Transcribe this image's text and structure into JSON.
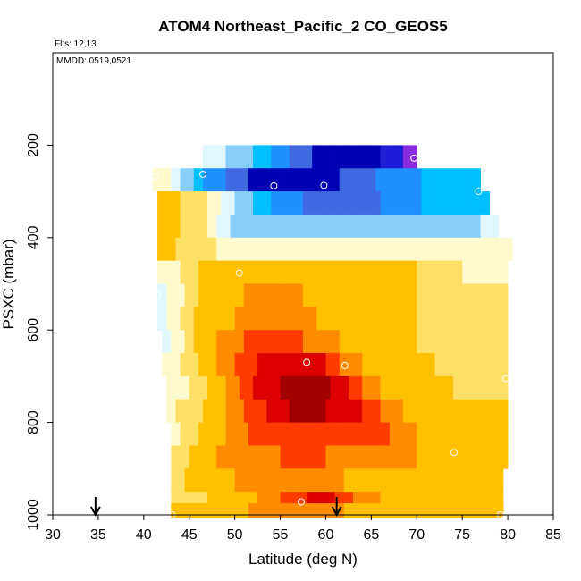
{
  "chart_data": {
    "type": "heatmap",
    "title": "ATOM4 Northeast_Pacific_2 CO_GEOS5",
    "flights_label": "Flts: 12,13",
    "dates_label": "MMDD: 0519,0521",
    "xlabel": "Latitude (deg N)",
    "ylabel": "PSXC (mbar)",
    "xlim": [
      30,
      85
    ],
    "ylim": [
      1000,
      0
    ],
    "x_ticks": [
      "30",
      "35",
      "40",
      "45",
      "50",
      "55",
      "60",
      "65",
      "70",
      "75",
      "80",
      "85"
    ],
    "y_ticks": [
      "200",
      "400",
      "600",
      "800",
      "1000"
    ],
    "y_tick_values": [
      200,
      400,
      600,
      800,
      1000
    ],
    "lat_step": 0.5,
    "palette": [
      "#8a2be2",
      "#1e1ed8",
      "#0000b4",
      "#4169e1",
      "#1e90ff",
      "#00bfff",
      "#87cefa",
      "#e0f7ff",
      "#fffacd",
      "#ffe066",
      "#ffc000",
      "#ff8c00",
      "#ff3b00",
      "#dc0000",
      "#a00000"
    ],
    "rows": [
      {
        "p": 225,
        "lat0": 46.5,
        "lat1": 70.0,
        "k": [
          [
            46.5,
            7.5
          ],
          [
            49,
            6.5
          ],
          [
            52,
            5.5
          ],
          [
            56,
            3.5
          ],
          [
            60,
            2
          ],
          [
            66,
            1.5
          ],
          [
            68.5,
            0.5
          ],
          [
            70,
            0
          ]
        ]
      },
      {
        "p": 275,
        "lat0": 41.0,
        "lat1": 77.0,
        "k": [
          [
            41,
            8
          ],
          [
            43,
            7.5
          ],
          [
            46.5,
            4.5
          ],
          [
            50,
            3
          ],
          [
            53,
            2
          ],
          [
            60,
            2
          ],
          [
            63,
            3
          ],
          [
            68,
            4
          ],
          [
            73,
            5
          ],
          [
            77,
            5.5
          ]
        ]
      },
      {
        "p": 325,
        "lat0": 41.5,
        "lat1": 78.0,
        "k": [
          [
            41.5,
            10
          ],
          [
            44,
            9.5
          ],
          [
            47,
            8.5
          ],
          [
            51,
            6
          ],
          [
            55,
            4
          ],
          [
            60,
            3
          ],
          [
            66,
            3.5
          ],
          [
            73,
            5
          ],
          [
            78,
            5.5
          ]
        ]
      },
      {
        "p": 375,
        "lat0": 41.5,
        "lat1": 79.0,
        "k": [
          [
            41.5,
            10
          ],
          [
            44,
            9.5
          ],
          [
            47,
            8.5
          ],
          [
            50,
            6
          ],
          [
            53,
            5.5
          ],
          [
            65,
            5.5
          ],
          [
            72,
            6
          ],
          [
            77,
            6.5
          ],
          [
            79,
            7
          ]
        ]
      },
      {
        "p": 425,
        "lat0": 41.5,
        "lat1": 80.5,
        "k": [
          [
            41.5,
            10
          ],
          [
            45,
            9
          ],
          [
            48,
            8.5
          ],
          [
            51,
            7.5
          ],
          [
            60,
            7.5
          ],
          [
            80.5,
            7.5
          ]
        ]
      },
      {
        "p": 475,
        "lat0": 41.5,
        "lat1": 80.0,
        "k": [
          [
            41.5,
            7.5
          ],
          [
            44,
            8.5
          ],
          [
            47,
            10
          ],
          [
            51,
            10.5
          ],
          [
            60,
            10
          ],
          [
            70,
            9.5
          ],
          [
            75,
            8.5
          ],
          [
            80,
            8
          ]
        ]
      },
      {
        "p": 525,
        "lat0": 41.5,
        "lat1": 80.0,
        "k": [
          [
            41.5,
            7
          ],
          [
            44,
            8
          ],
          [
            47,
            10
          ],
          [
            51,
            10.5
          ],
          [
            55,
            11
          ],
          [
            60,
            10
          ],
          [
            70,
            9.5
          ],
          [
            80,
            9
          ]
        ]
      },
      {
        "p": 575,
        "lat0": 41.5,
        "lat1": 80.0,
        "k": [
          [
            41.5,
            7
          ],
          [
            43.5,
            8
          ],
          [
            46,
            10
          ],
          [
            50,
            10.5
          ],
          [
            53,
            11.5
          ],
          [
            56,
            11
          ],
          [
            62,
            10
          ],
          [
            70,
            9.5
          ],
          [
            80,
            9
          ]
        ]
      },
      {
        "p": 625,
        "lat0": 42.0,
        "lat1": 80.0,
        "k": [
          [
            42,
            7
          ],
          [
            44,
            8
          ],
          [
            46,
            10
          ],
          [
            50,
            11
          ],
          [
            53,
            12.5
          ],
          [
            56,
            12
          ],
          [
            59,
            11
          ],
          [
            64,
            10
          ],
          [
            70,
            9.5
          ],
          [
            80,
            9
          ]
        ]
      },
      {
        "p": 675,
        "lat0": 42.0,
        "lat1": 80.0,
        "k": [
          [
            42,
            7.5
          ],
          [
            44,
            8.5
          ],
          [
            47,
            10
          ],
          [
            51,
            12
          ],
          [
            54,
            13
          ],
          [
            57,
            13.5
          ],
          [
            60,
            12.5
          ],
          [
            62,
            11
          ],
          [
            66,
            10
          ],
          [
            72,
            9.5
          ],
          [
            80,
            9
          ]
        ]
      },
      {
        "p": 725,
        "lat0": 42.5,
        "lat1": 80.0,
        "k": [
          [
            42.5,
            7.5
          ],
          [
            45,
            8.5
          ],
          [
            48,
            10
          ],
          [
            52,
            12.5
          ],
          [
            55,
            13.5
          ],
          [
            59,
            14
          ],
          [
            62,
            13
          ],
          [
            64,
            11.5
          ],
          [
            67,
            10
          ],
          [
            74,
            9.5
          ],
          [
            80,
            9
          ]
        ]
      },
      {
        "p": 775,
        "lat0": 42.5,
        "lat1": 80.0,
        "k": [
          [
            42.5,
            8
          ],
          [
            45,
            9
          ],
          [
            48,
            10
          ],
          [
            52,
            12
          ],
          [
            56,
            13.5
          ],
          [
            60,
            13.5
          ],
          [
            64,
            12.5
          ],
          [
            67,
            11
          ],
          [
            70,
            10
          ],
          [
            80,
            9.5
          ]
        ]
      },
      {
        "p": 825,
        "lat0": 43.0,
        "lat1": 80.0,
        "k": [
          [
            43,
            8
          ],
          [
            46,
            9.5
          ],
          [
            49,
            10.5
          ],
          [
            53,
            12
          ],
          [
            58,
            12.5
          ],
          [
            63,
            12
          ],
          [
            67,
            11.5
          ],
          [
            70,
            10.5
          ],
          [
            74,
            9.5
          ],
          [
            80,
            9.5
          ]
        ]
      },
      {
        "p": 875,
        "lat0": 43.0,
        "lat1": 80.0,
        "k": [
          [
            43,
            8.5
          ],
          [
            46,
            10
          ],
          [
            50,
            11
          ],
          [
            55,
            11.5
          ],
          [
            60,
            11.5
          ],
          [
            65,
            11
          ],
          [
            70,
            10.5
          ],
          [
            73,
            9.5
          ],
          [
            80,
            9.5
          ]
        ]
      },
      {
        "p": 925,
        "lat0": 43.0,
        "lat1": 79.5,
        "k": [
          [
            43,
            9
          ],
          [
            46,
            10
          ],
          [
            50,
            10.5
          ],
          [
            55,
            11
          ],
          [
            62,
            10.5
          ],
          [
            70,
            10
          ],
          [
            76,
            9.5
          ],
          [
            79.5,
            9.5
          ]
        ]
      },
      {
        "p": 975,
        "lat0": 43.0,
        "lat1": 79.5,
        "k": [
          [
            43,
            9
          ],
          [
            47,
            9.5
          ],
          [
            51,
            10
          ],
          [
            55,
            11.5
          ],
          [
            58,
            12.5
          ],
          [
            61,
            12.5
          ],
          [
            64,
            11
          ],
          [
            68,
            10
          ],
          [
            73,
            9.5
          ],
          [
            79.5,
            9.5
          ]
        ]
      },
      {
        "p": 1000,
        "lat0": 43.0,
        "lat1": 79.5,
        "k": [
          [
            43,
            9.5
          ],
          [
            48,
            10
          ],
          [
            55,
            11
          ],
          [
            62,
            10.5
          ],
          [
            70,
            10
          ],
          [
            79.5,
            9.5
          ]
        ]
      }
    ],
    "samples": [
      {
        "lat": 69.7,
        "p": 228
      },
      {
        "lat": 46.5,
        "p": 263
      },
      {
        "lat": 54.3,
        "p": 288
      },
      {
        "lat": 59.8,
        "p": 287
      },
      {
        "lat": 41.2,
        "p": 268
      },
      {
        "lat": 76.8,
        "p": 300
      },
      {
        "lat": 50.5,
        "p": 477
      },
      {
        "lat": 41.5,
        "p": 525
      },
      {
        "lat": 57.9,
        "p": 670
      },
      {
        "lat": 62.1,
        "p": 677
      },
      {
        "lat": 79.8,
        "p": 705
      },
      {
        "lat": 74.1,
        "p": 865
      },
      {
        "lat": 57.3,
        "p": 972
      },
      {
        "lat": 43.1,
        "p": 1000
      },
      {
        "lat": 79.2,
        "p": 1000
      }
    ],
    "arrows": [
      34.7,
      61.2
    ]
  }
}
